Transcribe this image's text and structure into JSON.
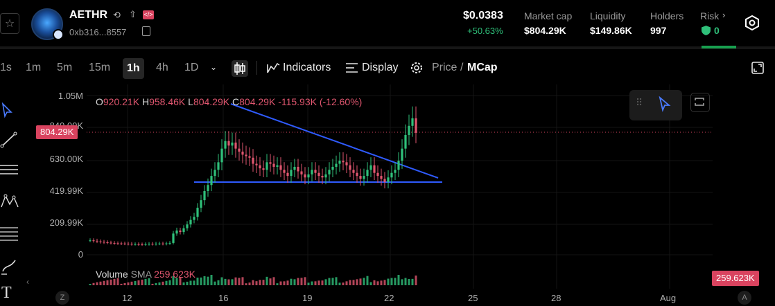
{
  "token": {
    "name": "AETHR",
    "address": "0xb316...8557",
    "price": "$0.0383",
    "change": "+50.63%"
  },
  "stats": [
    {
      "label": "Market cap",
      "value": "$804.29K"
    },
    {
      "label": "Liquidity",
      "value": "$149.86K"
    },
    {
      "label": "Holders",
      "value": "997"
    },
    {
      "label": "Risk",
      "value": "0"
    }
  ],
  "toolbar": {
    "timeframes": [
      "1s",
      "1m",
      "5m",
      "15m",
      "1h",
      "4h",
      "1D"
    ],
    "active_timeframe": "1h",
    "indicators_label": "Indicators",
    "display_label": "Display",
    "price_label": "Price",
    "slash": "/",
    "mcap_label": "MCap"
  },
  "chart_data": {
    "type": "candlestick",
    "y_axis": [
      "1.05M",
      "840.00K",
      "630.00K",
      "419.99K",
      "209.99K",
      "0"
    ],
    "x_axis": [
      "12",
      "16",
      "19",
      "22",
      "25",
      "28",
      "Aug"
    ],
    "current_value_tag": "804.29K",
    "ohlc": {
      "o_label": "O",
      "o": "920.21K",
      "h_label": "H",
      "h": "958.46K",
      "l_label": "L",
      "l": "804.29K",
      "c_label": "C",
      "c": "804.29K",
      "change": "-115.93K (-12.60%)"
    },
    "volume": {
      "label": "Volume",
      "sma_label": "SMA",
      "sma_value": "259.623K",
      "tag": "259.623K"
    },
    "close_series": [
      95,
      92,
      88,
      85,
      82,
      80,
      78,
      76,
      75,
      74,
      73,
      72,
      70,
      70,
      69,
      68,
      70,
      72,
      71,
      73,
      74,
      72,
      75,
      78,
      140,
      160,
      150,
      175,
      200,
      230,
      250,
      310,
      360,
      420,
      460,
      520,
      560,
      610,
      700,
      750,
      720,
      740,
      700,
      680,
      660,
      650,
      640,
      600,
      590,
      570,
      560,
      610,
      600,
      580,
      590,
      560,
      540,
      520,
      560,
      580,
      550,
      530,
      510,
      530,
      560,
      540,
      520,
      510,
      530,
      560,
      580,
      600,
      620,
      610,
      590,
      560,
      540,
      520,
      500,
      520,
      560,
      590,
      540,
      520,
      500,
      480,
      510,
      540,
      560,
      620,
      700,
      790,
      850,
      900,
      804
    ],
    "trend_lines": [
      {
        "from": [
          "16.4",
          "1.0M"
        ],
        "to": [
          "24.2",
          "500K"
        ]
      },
      {
        "from": "15",
        "to": "24.5",
        "level": "480K"
      }
    ],
    "colors": {
      "up": "#2fc07a",
      "down": "#e0566f",
      "trend": "#2f5bff"
    }
  },
  "corner": {
    "left": "Z",
    "right": "A"
  }
}
